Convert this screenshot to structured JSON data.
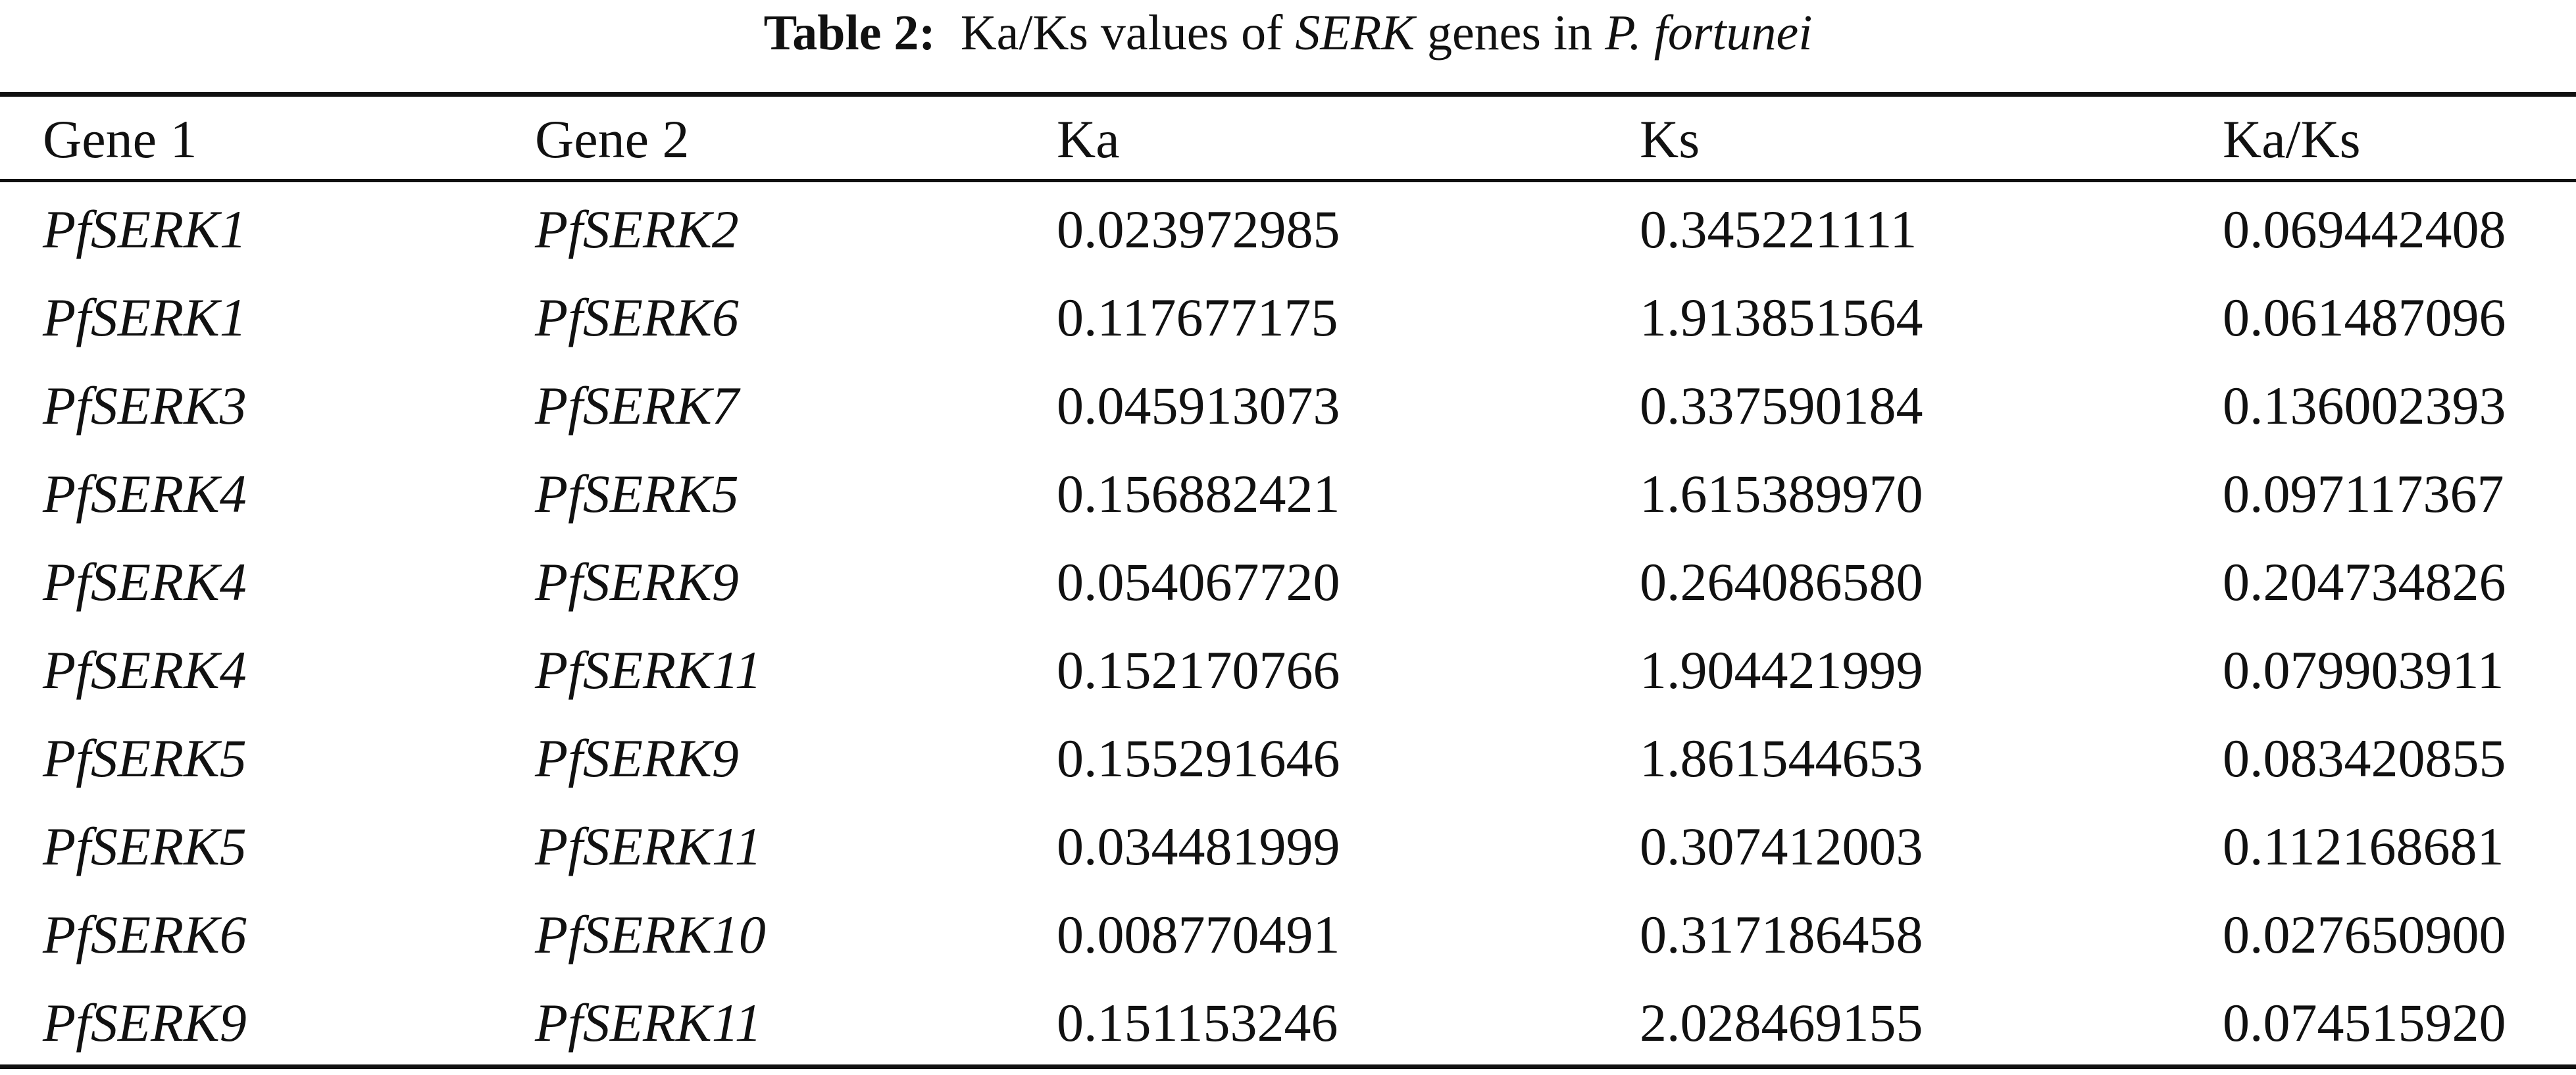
{
  "caption": {
    "label": "Table 2:",
    "text_before": "Ka/Ks values of ",
    "gene_italic": "SERK",
    "text_middle": " genes in ",
    "species_italic": "P. fortunei"
  },
  "table": {
    "headers": [
      "Gene 1",
      "Gene 2",
      "Ka",
      "Ks",
      "Ka/Ks"
    ],
    "rows": [
      [
        "PfSERK1",
        "PfSERK2",
        "0.023972985",
        "0.345221111",
        "0.069442408"
      ],
      [
        "PfSERK1",
        "PfSERK6",
        "0.117677175",
        "1.913851564",
        "0.061487096"
      ],
      [
        "PfSERK3",
        "PfSERK7",
        "0.045913073",
        "0.337590184",
        "0.136002393"
      ],
      [
        "PfSERK4",
        "PfSERK5",
        "0.156882421",
        "1.615389970",
        "0.097117367"
      ],
      [
        "PfSERK4",
        "PfSERK9",
        "0.054067720",
        "0.264086580",
        "0.204734826"
      ],
      [
        "PfSERK4",
        "PfSERK11",
        "0.152170766",
        "1.904421999",
        "0.079903911"
      ],
      [
        "PfSERK5",
        "PfSERK9",
        "0.155291646",
        "1.861544653",
        "0.083420855"
      ],
      [
        "PfSERK5",
        "PfSERK11",
        "0.034481999",
        "0.307412003",
        "0.112168681"
      ],
      [
        "PfSERK6",
        "PfSERK10",
        "0.008770491",
        "0.317186458",
        "0.027650900"
      ],
      [
        "PfSERK9",
        "PfSERK11",
        "0.151153246",
        "2.028469155",
        "0.074515920"
      ]
    ]
  }
}
